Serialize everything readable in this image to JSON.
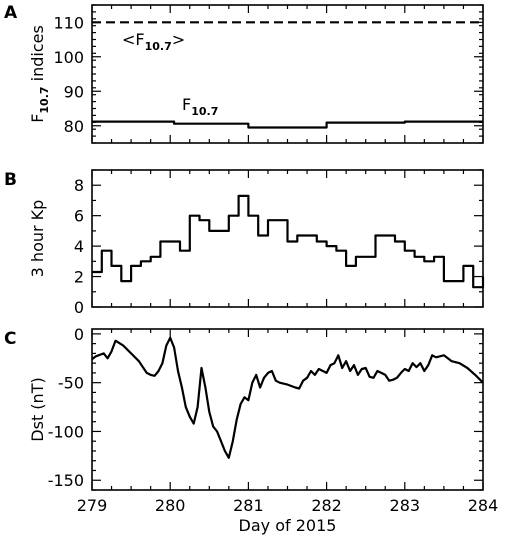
{
  "chart_data": [
    {
      "panel": "A",
      "type": "line",
      "ylabel": "F10.7 indices",
      "ylabel_main": "F",
      "ylabel_sub": "10.7",
      "ylabel_rest": " indices",
      "xlim": [
        279,
        284
      ],
      "ylim": [
        75,
        115
      ],
      "yticks": [
        80,
        90,
        100,
        110
      ],
      "series": [
        {
          "name": "<F10.7>",
          "label_main": "<F",
          "label_sub": "10.7",
          "label_end": ">",
          "style": "dashed",
          "x": [
            279,
            284
          ],
          "y": [
            110,
            110
          ]
        },
        {
          "name": "F10.7",
          "label_main": "F",
          "label_sub": "10.7",
          "style": "step",
          "x": [
            279,
            280,
            280.05,
            281,
            282,
            283,
            284
          ],
          "y": [
            81.2,
            81.2,
            80.6,
            79.5,
            80.9,
            81.2,
            81.2
          ]
        }
      ]
    },
    {
      "panel": "B",
      "type": "line",
      "ylabel": "3 hour Kp",
      "xlim": [
        279,
        284
      ],
      "ylim": [
        0,
        9
      ],
      "yticks": [
        0,
        2,
        4,
        6,
        8
      ],
      "series": [
        {
          "style": "step",
          "step": 0.125,
          "x0": 279,
          "values": [
            2.3,
            3.7,
            2.7,
            1.7,
            2.7,
            3.0,
            3.3,
            4.3,
            4.3,
            3.7,
            6.0,
            5.7,
            5.0,
            5.0,
            6.0,
            7.3,
            6.0,
            4.7,
            5.7,
            5.7,
            4.3,
            4.7,
            4.7,
            4.3,
            4.0,
            3.7,
            2.7,
            3.3,
            3.3,
            4.7,
            4.7,
            4.3,
            3.7,
            3.3,
            3.0,
            3.3,
            1.7,
            1.7,
            2.7,
            1.3,
            2.0
          ]
        }
      ]
    },
    {
      "panel": "C",
      "type": "line",
      "ylabel": "Dst (nT)",
      "xlabel": "Day of 2015",
      "xlim": [
        279,
        284
      ],
      "ylim": [
        -160,
        5
      ],
      "yticks": [
        -150,
        -100,
        -50,
        0
      ],
      "xticks": [
        279,
        280,
        281,
        282,
        283,
        284
      ],
      "series": [
        {
          "style": "line",
          "x": [
            279.0,
            279.05,
            279.15,
            279.2,
            279.25,
            279.3,
            279.4,
            279.5,
            279.6,
            279.7,
            279.75,
            279.8,
            279.85,
            279.9,
            279.95,
            280.0,
            280.05,
            280.1,
            280.15,
            280.2,
            280.25,
            280.3,
            280.35,
            280.4,
            280.45,
            280.5,
            280.55,
            280.6,
            280.65,
            280.7,
            280.75,
            280.8,
            280.85,
            280.9,
            280.95,
            281.0,
            281.05,
            281.1,
            281.15,
            281.2,
            281.25,
            281.3,
            281.35,
            281.4,
            281.5,
            281.6,
            281.65,
            281.7,
            281.75,
            281.8,
            281.85,
            281.9,
            282.0,
            282.05,
            282.1,
            282.15,
            282.2,
            282.25,
            282.3,
            282.35,
            282.4,
            282.45,
            282.5,
            282.55,
            282.6,
            282.65,
            282.7,
            282.75,
            282.8,
            282.85,
            282.9,
            282.95,
            283.0,
            283.05,
            283.1,
            283.15,
            283.2,
            283.25,
            283.3,
            283.35,
            283.4,
            283.5,
            283.6,
            283.7,
            283.8,
            283.9,
            284.0
          ],
          "y": [
            -26,
            -23,
            -20,
            -25,
            -18,
            -7,
            -12,
            -20,
            -28,
            -40,
            -42,
            -43,
            -38,
            -30,
            -12,
            -4,
            -14,
            -38,
            -55,
            -75,
            -85,
            -92,
            -75,
            -35,
            -55,
            -80,
            -95,
            -100,
            -110,
            -120,
            -127,
            -110,
            -88,
            -72,
            -65,
            -68,
            -50,
            -42,
            -55,
            -45,
            -40,
            -38,
            -48,
            -50,
            -52,
            -55,
            -56,
            -48,
            -45,
            -38,
            -42,
            -36,
            -40,
            -32,
            -30,
            -22,
            -35,
            -28,
            -38,
            -32,
            -42,
            -36,
            -35,
            -44,
            -45,
            -38,
            -40,
            -42,
            -48,
            -47,
            -45,
            -40,
            -36,
            -38,
            -30,
            -34,
            -30,
            -38,
            -32,
            -22,
            -24,
            -22,
            -28,
            -30,
            -35,
            -42,
            -50
          ]
        }
      ]
    }
  ],
  "x_tick_labels": [
    "279",
    "280",
    "281",
    "282",
    "283",
    "284"
  ]
}
